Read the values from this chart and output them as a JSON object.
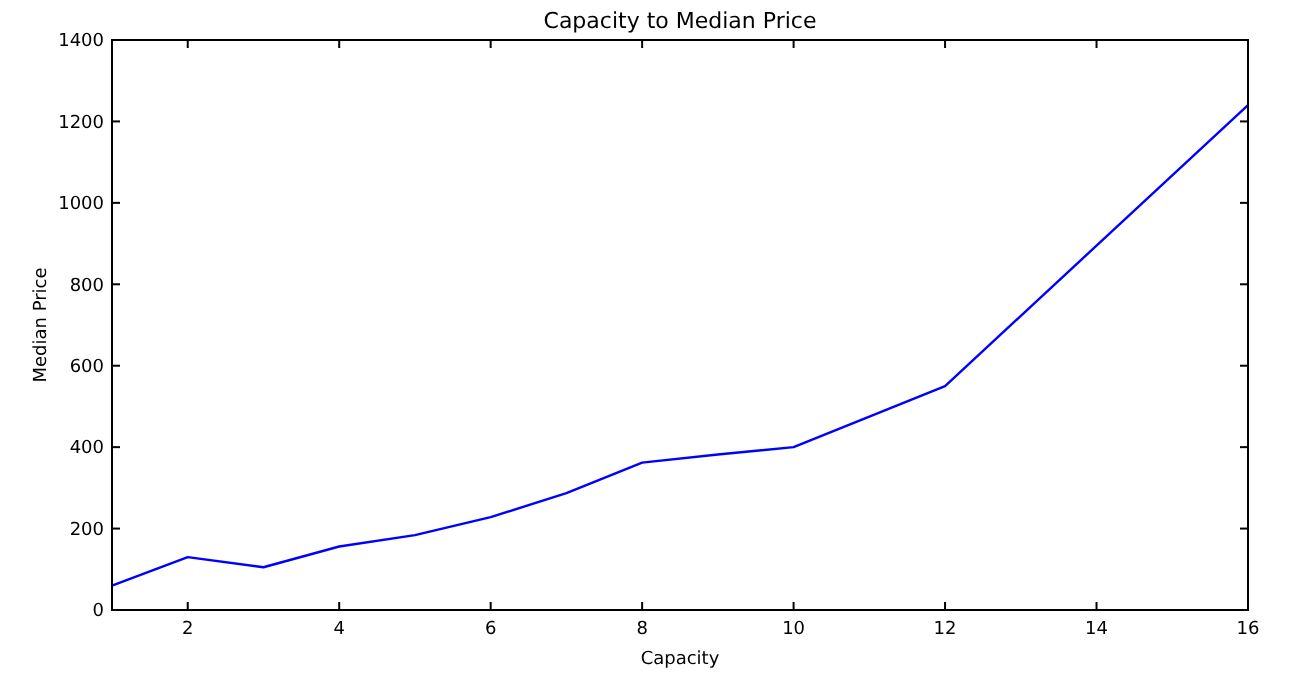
{
  "chart_data": {
    "type": "line",
    "title": "Capacity to Median Price",
    "xlabel": "Capacity",
    "ylabel": "Median Price",
    "x": [
      1,
      2,
      3,
      4,
      5,
      6,
      7,
      8,
      9,
      10,
      12,
      16
    ],
    "series": [
      {
        "color": "#0000ff",
        "values": [
          60,
          130,
          105,
          156,
          184,
          228,
          287,
          362,
          382,
          400,
          550,
          1240
        ]
      }
    ],
    "xlim": [
      1,
      16
    ],
    "xticks": [
      2,
      4,
      6,
      8,
      10,
      12,
      14,
      16
    ],
    "ylim": [
      0,
      1400
    ],
    "yticks": [
      0,
      200,
      400,
      600,
      800,
      1000,
      1200,
      1400
    ],
    "grid": false,
    "marker": "none",
    "line_style": "solid"
  }
}
